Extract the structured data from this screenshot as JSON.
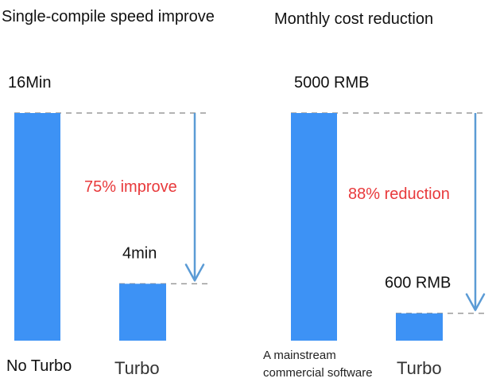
{
  "colors": {
    "bar": "#3d92f5",
    "arrow": "#5b9bd5",
    "annotation": "#e8393b",
    "guide": "#9a9a9a"
  },
  "chart_data": [
    {
      "type": "bar",
      "title": "Single-compile speed improve",
      "categories": [
        "No Turbo",
        "Turbo"
      ],
      "values": [
        16,
        4
      ],
      "value_labels": [
        "16Min",
        "4min"
      ],
      "unit": "min",
      "annotation": "75% improve",
      "ylim": [
        0,
        16
      ]
    },
    {
      "type": "bar",
      "title": "Monthly cost reduction",
      "categories": [
        "A mainstream commercial software",
        "Turbo"
      ],
      "category_lines": [
        [
          "A mainstream",
          "commercial software"
        ],
        [
          "Turbo"
        ]
      ],
      "values": [
        5000,
        600
      ],
      "value_labels": [
        "5000 RMB",
        "600 RMB"
      ],
      "unit": "RMB",
      "annotation": "88% reduction",
      "ylim": [
        0,
        5000
      ]
    }
  ]
}
